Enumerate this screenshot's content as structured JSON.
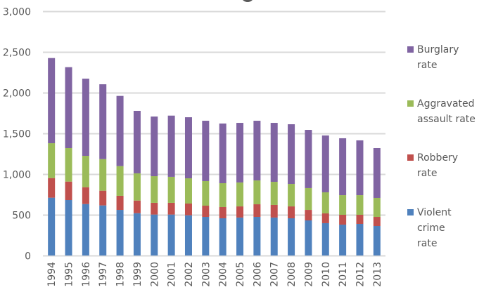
{
  "chart_data": {
    "type": "bar",
    "stacked": true,
    "title": "",
    "xlabel": "",
    "ylabel": "",
    "ylim": [
      0,
      3000
    ],
    "yticks": [
      0,
      500,
      1000,
      1500,
      2000,
      2500,
      3000
    ],
    "ytick_labels": [
      "0",
      "500",
      "1,000",
      "1,500",
      "2,000",
      "2,500",
      "3,000"
    ],
    "grid": true,
    "legend_position": "right",
    "categories": [
      "1994",
      "1995",
      "1996",
      "1997",
      "1998",
      "1999",
      "2000",
      "2001",
      "2002",
      "2003",
      "2004",
      "2005",
      "2006",
      "2007",
      "2008",
      "2009",
      "2010",
      "2011",
      "2012",
      "2013"
    ],
    "series": [
      {
        "name": "Violent crime rate",
        "color": "#4F81BD",
        "values": [
          710,
          681,
          632,
          615,
          560,
          520,
          503,
          503,
          494,
          474,
          457,
          466,
          474,
          466,
          457,
          431,
          397,
          379,
          388,
          362
        ]
      },
      {
        "name": "Robbery rate",
        "color": "#C0504D",
        "values": [
          241,
          227,
          207,
          181,
          173,
          155,
          144,
          144,
          144,
          138,
          138,
          137,
          155,
          155,
          146,
          129,
          120,
          121,
          112,
          112
        ]
      },
      {
        "name": "Aggravated assault rate",
        "color": "#9BBB59",
        "values": [
          428,
          411,
          385,
          388,
          365,
          334,
          327,
          319,
          310,
          302,
          293,
          294,
          293,
          284,
          276,
          268,
          259,
          241,
          241,
          233
        ]
      },
      {
        "name": "Burglary rate",
        "color": "#8064A2",
        "values": [
          1046,
          994,
          948,
          919,
          862,
          767,
          733,
          752,
          750,
          741,
          733,
          732,
          733,
          724,
          733,
          715,
          698,
          699,
          673,
          612
        ]
      }
    ]
  },
  "legend": {
    "items": [
      {
        "lines": [
          "Burglary",
          "rate"
        ],
        "color": "#8064A2"
      },
      {
        "lines": [
          "Aggravated",
          "assault rate"
        ],
        "color": "#9BBB59"
      },
      {
        "lines": [
          "Robbery",
          "rate"
        ],
        "color": "#C0504D"
      },
      {
        "lines": [
          "Violent",
          "crime",
          "rate"
        ],
        "color": "#4F81BD"
      }
    ]
  },
  "colors": {
    "gridline": "#D9D9D9",
    "text": "#595959"
  }
}
